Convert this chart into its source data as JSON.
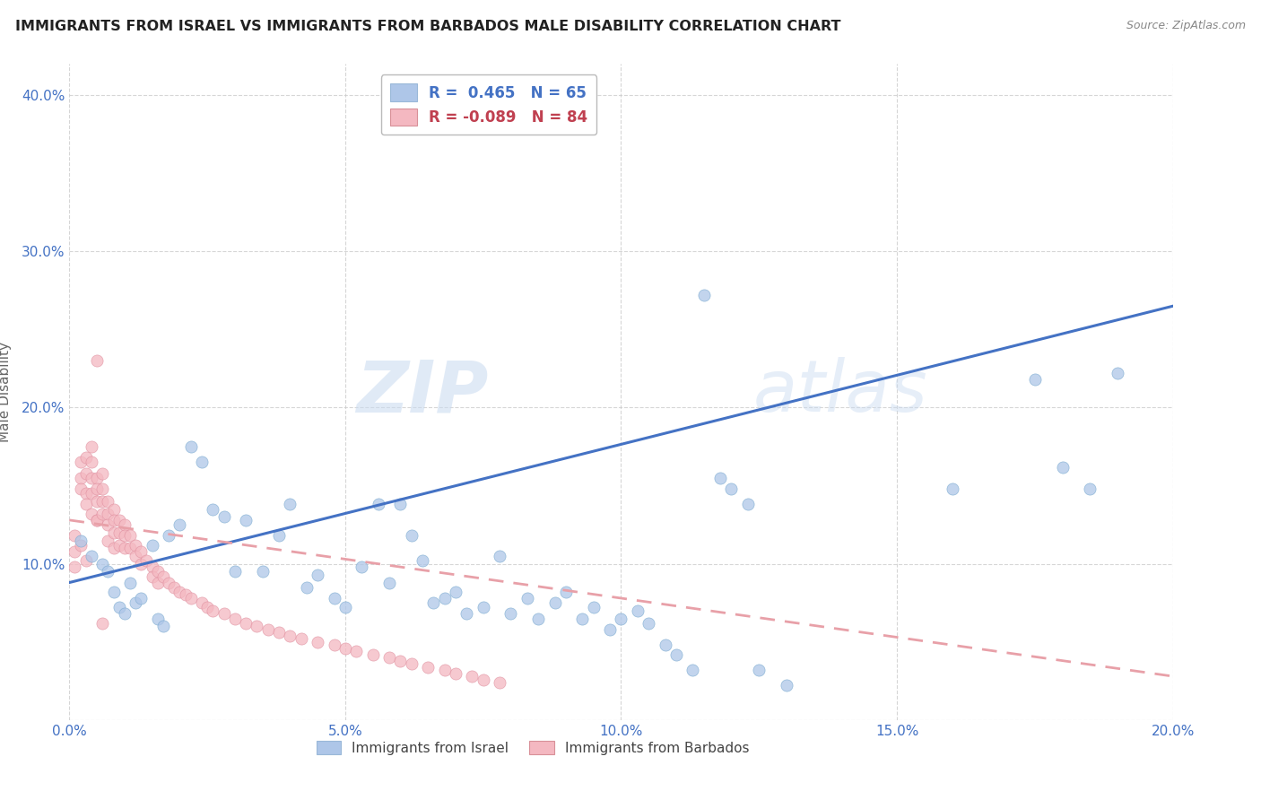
{
  "title": "IMMIGRANTS FROM ISRAEL VS IMMIGRANTS FROM BARBADOS MALE DISABILITY CORRELATION CHART",
  "source": "Source: ZipAtlas.com",
  "ylabel": "Male Disability",
  "x_min": 0.0,
  "x_max": 0.2,
  "y_min": 0.0,
  "y_max": 0.42,
  "legend_label1": "Immigrants from Israel",
  "legend_label2": "Immigrants from Barbados",
  "israel_color": "#aec6e8",
  "barbados_color": "#f4b8c1",
  "israel_line_color": "#4472c4",
  "barbados_line_color": "#e8a0a8",
  "watermark_zip": "ZIP",
  "watermark_atlas": "atlas",
  "israel_R": 0.465,
  "israel_N": 65,
  "barbados_R": -0.089,
  "barbados_N": 84,
  "israel_line_x": [
    0.0,
    0.2
  ],
  "israel_line_y": [
    0.088,
    0.265
  ],
  "barbados_line_x": [
    0.0,
    0.2
  ],
  "barbados_line_y": [
    0.128,
    0.028
  ],
  "israel_x": [
    0.002,
    0.004,
    0.006,
    0.007,
    0.008,
    0.009,
    0.01,
    0.011,
    0.012,
    0.013,
    0.015,
    0.016,
    0.017,
    0.018,
    0.02,
    0.022,
    0.024,
    0.026,
    0.028,
    0.03,
    0.032,
    0.035,
    0.038,
    0.04,
    0.043,
    0.045,
    0.048,
    0.05,
    0.053,
    0.056,
    0.058,
    0.06,
    0.062,
    0.064,
    0.066,
    0.068,
    0.07,
    0.072,
    0.075,
    0.078,
    0.08,
    0.083,
    0.085,
    0.088,
    0.09,
    0.093,
    0.095,
    0.098,
    0.1,
    0.103,
    0.105,
    0.108,
    0.11,
    0.113,
    0.115,
    0.118,
    0.12,
    0.123,
    0.125,
    0.13,
    0.16,
    0.175,
    0.18,
    0.185,
    0.19
  ],
  "israel_y": [
    0.115,
    0.105,
    0.1,
    0.095,
    0.082,
    0.072,
    0.068,
    0.088,
    0.075,
    0.078,
    0.112,
    0.065,
    0.06,
    0.118,
    0.125,
    0.175,
    0.165,
    0.135,
    0.13,
    0.095,
    0.128,
    0.095,
    0.118,
    0.138,
    0.085,
    0.093,
    0.078,
    0.072,
    0.098,
    0.138,
    0.088,
    0.138,
    0.118,
    0.102,
    0.075,
    0.078,
    0.082,
    0.068,
    0.072,
    0.105,
    0.068,
    0.078,
    0.065,
    0.075,
    0.082,
    0.065,
    0.072,
    0.058,
    0.065,
    0.07,
    0.062,
    0.048,
    0.042,
    0.032,
    0.272,
    0.155,
    0.148,
    0.138,
    0.032,
    0.022,
    0.148,
    0.218,
    0.162,
    0.148,
    0.222
  ],
  "barbados_x": [
    0.001,
    0.001,
    0.001,
    0.002,
    0.002,
    0.002,
    0.002,
    0.003,
    0.003,
    0.003,
    0.003,
    0.003,
    0.004,
    0.004,
    0.004,
    0.004,
    0.004,
    0.005,
    0.005,
    0.005,
    0.005,
    0.005,
    0.006,
    0.006,
    0.006,
    0.006,
    0.007,
    0.007,
    0.007,
    0.007,
    0.008,
    0.008,
    0.008,
    0.008,
    0.009,
    0.009,
    0.009,
    0.01,
    0.01,
    0.01,
    0.011,
    0.011,
    0.012,
    0.012,
    0.013,
    0.013,
    0.014,
    0.015,
    0.015,
    0.016,
    0.016,
    0.017,
    0.018,
    0.019,
    0.02,
    0.021,
    0.022,
    0.024,
    0.025,
    0.026,
    0.028,
    0.03,
    0.032,
    0.034,
    0.036,
    0.038,
    0.04,
    0.042,
    0.045,
    0.048,
    0.05,
    0.052,
    0.055,
    0.058,
    0.06,
    0.062,
    0.065,
    0.068,
    0.07,
    0.073,
    0.075,
    0.078,
    0.005,
    0.006
  ],
  "barbados_y": [
    0.118,
    0.108,
    0.098,
    0.165,
    0.155,
    0.148,
    0.112,
    0.168,
    0.158,
    0.145,
    0.138,
    0.102,
    0.175,
    0.165,
    0.155,
    0.145,
    0.132,
    0.128,
    0.155,
    0.148,
    0.14,
    0.128,
    0.158,
    0.148,
    0.14,
    0.132,
    0.14,
    0.132,
    0.125,
    0.115,
    0.135,
    0.128,
    0.12,
    0.11,
    0.128,
    0.12,
    0.112,
    0.125,
    0.118,
    0.11,
    0.118,
    0.11,
    0.112,
    0.105,
    0.108,
    0.1,
    0.102,
    0.098,
    0.092,
    0.095,
    0.088,
    0.092,
    0.088,
    0.085,
    0.082,
    0.08,
    0.078,
    0.075,
    0.072,
    0.07,
    0.068,
    0.065,
    0.062,
    0.06,
    0.058,
    0.056,
    0.054,
    0.052,
    0.05,
    0.048,
    0.046,
    0.044,
    0.042,
    0.04,
    0.038,
    0.036,
    0.034,
    0.032,
    0.03,
    0.028,
    0.026,
    0.024,
    0.23,
    0.062
  ]
}
